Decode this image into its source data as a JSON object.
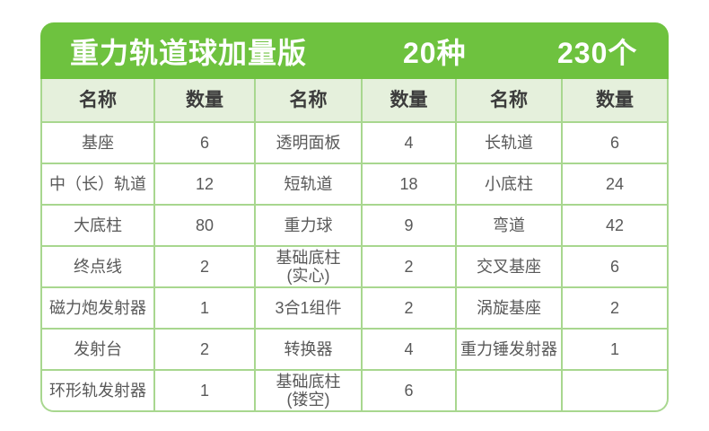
{
  "header": {
    "title": "重力轨道球加量版",
    "variety_count": "20种",
    "total_count": "230个"
  },
  "table": {
    "column_headers": [
      "名称",
      "数量",
      "名称",
      "数量",
      "名称",
      "数量"
    ],
    "rows": [
      [
        "基座",
        "6",
        "透明面板",
        "4",
        "长轨道",
        "6"
      ],
      [
        "中（长）轨道",
        "12",
        "短轨道",
        "18",
        "小底柱",
        "24"
      ],
      [
        "大底柱",
        "80",
        "重力球",
        "9",
        "弯道",
        "42"
      ],
      [
        "终点线",
        "2",
        "基础底柱\n(实心)",
        "2",
        "交叉基座",
        "6"
      ],
      [
        "磁力炮发射器",
        "1",
        "3合1组件",
        "2",
        "涡旋基座",
        "2"
      ],
      [
        "发射台",
        "2",
        "转换器",
        "4",
        "重力锤发射器",
        "1"
      ],
      [
        "环形轨发射器",
        "1",
        "基础底柱\n(镂空)",
        "6",
        "",
        ""
      ]
    ]
  },
  "colors": {
    "accent_green": "#6ec23f",
    "header_cell_bg": "#e5f0dc",
    "grid_border": "#a8d78f",
    "text_dark": "#3c3c3c",
    "text_body": "#595959",
    "title_text": "#ffffff",
    "page_bg": "#ffffff"
  }
}
